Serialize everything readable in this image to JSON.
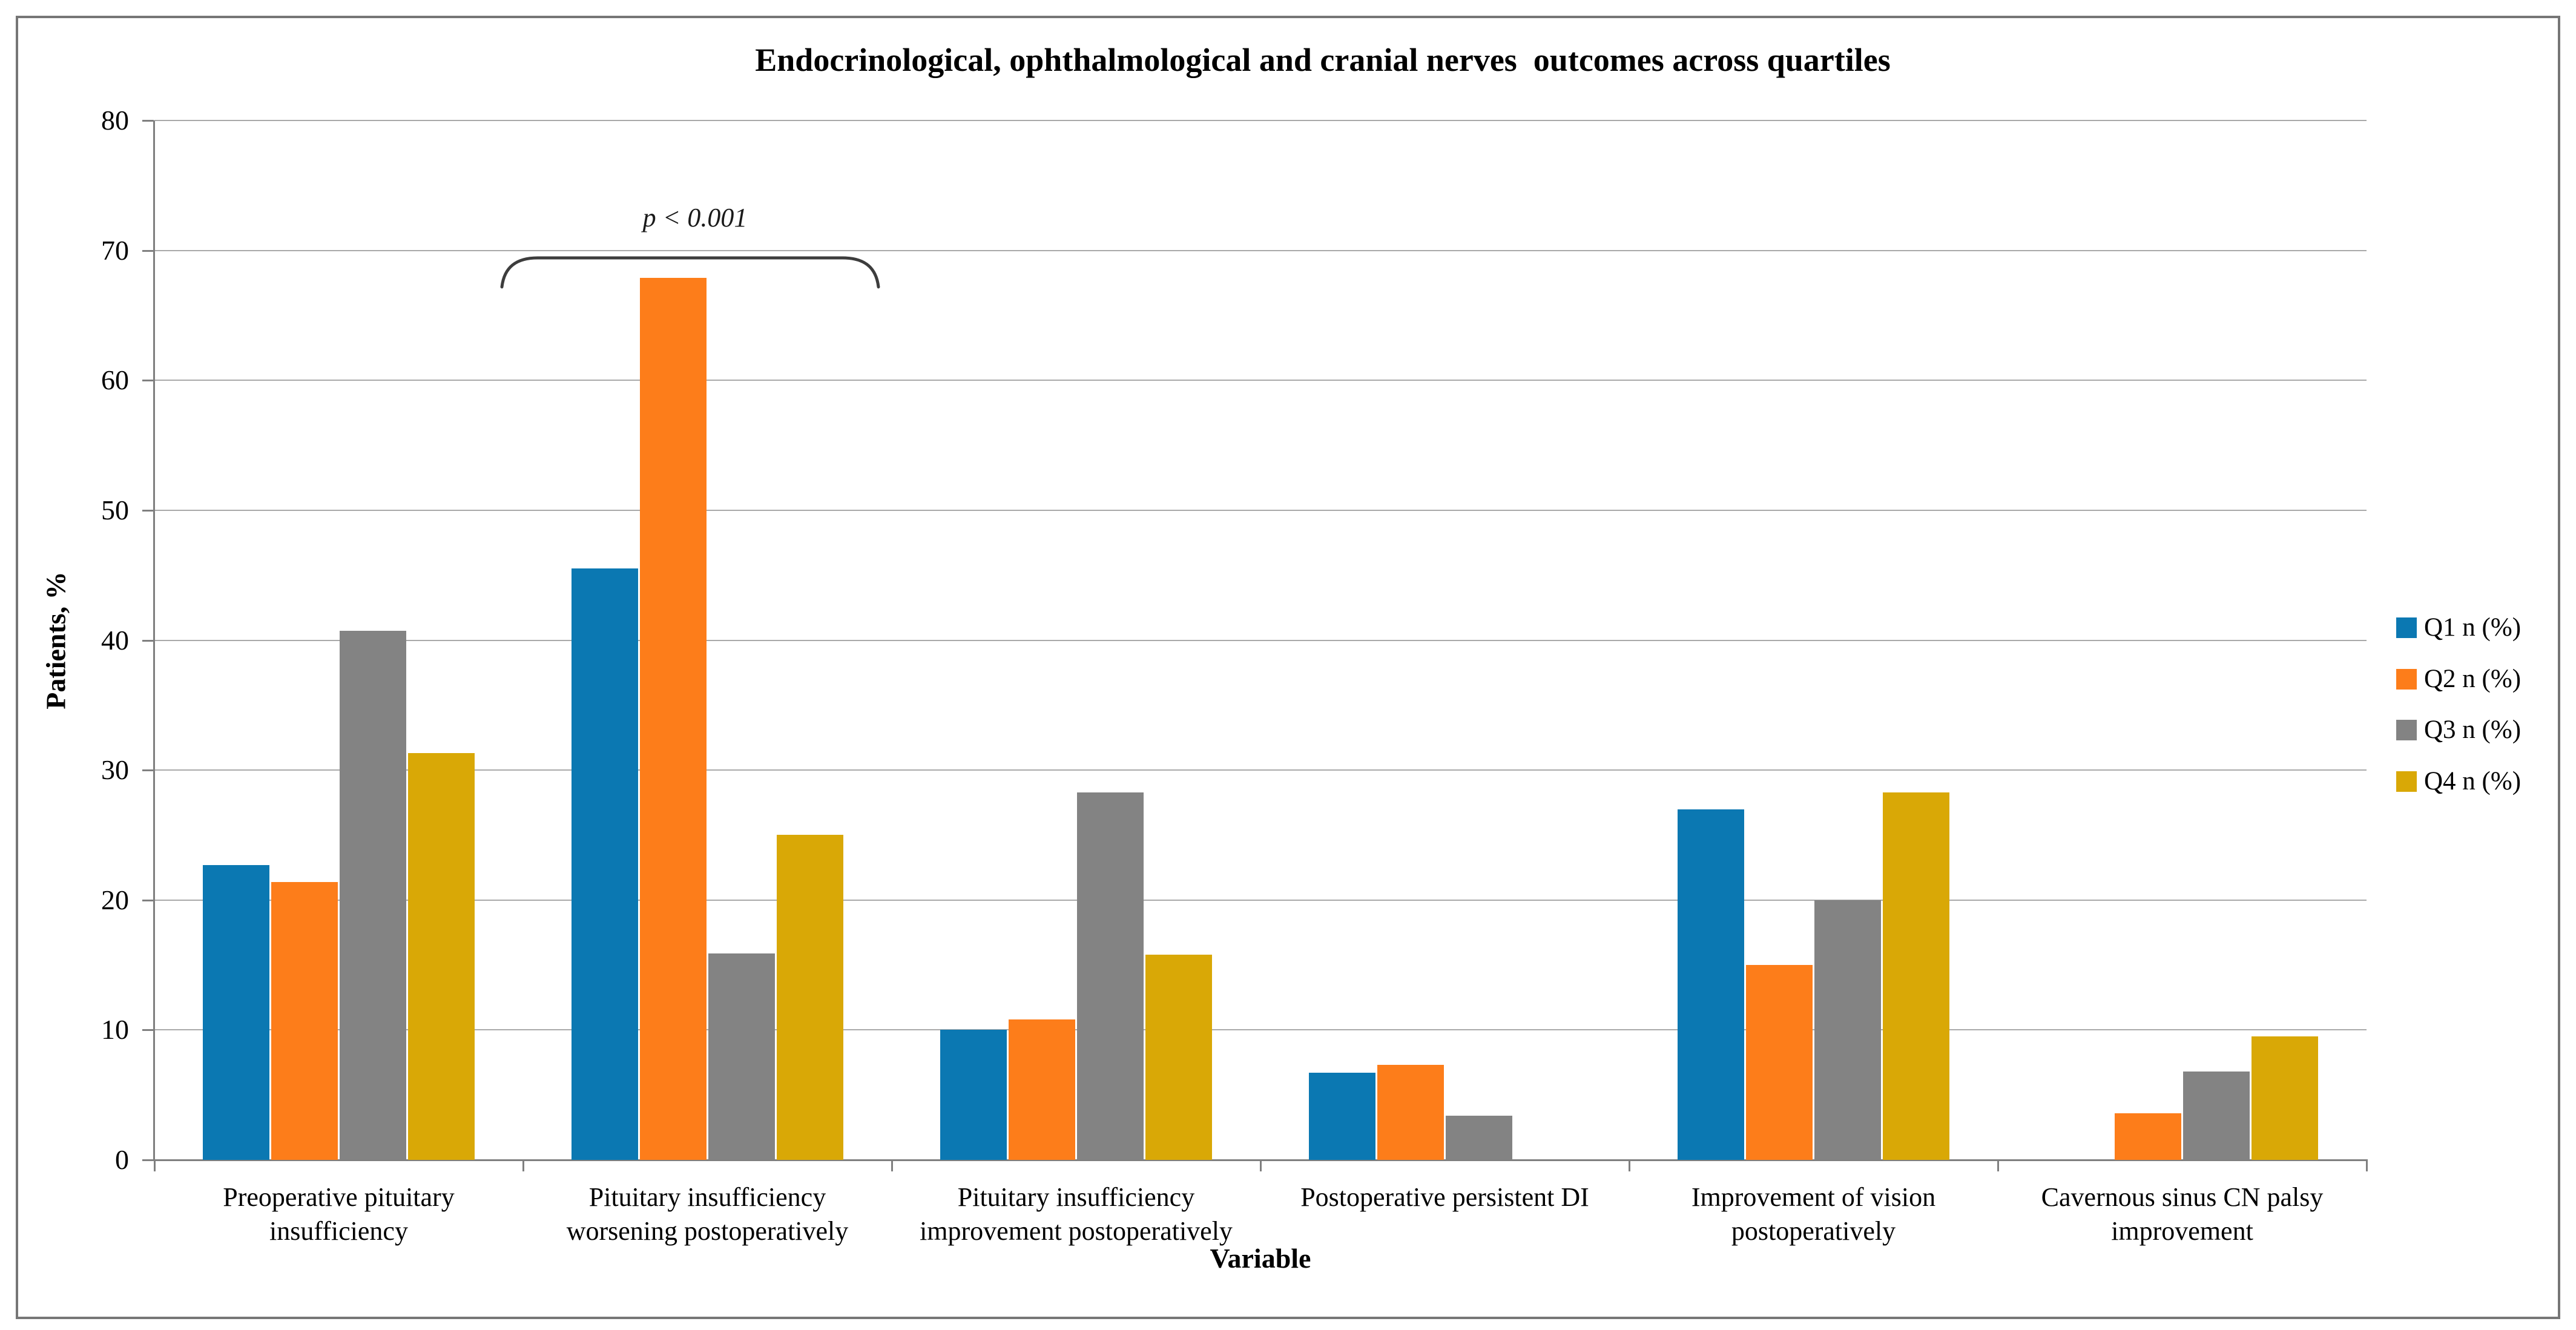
{
  "chart_data": {
    "type": "bar",
    "title": "Endocrinological, ophthalmological and cranial nerves  outcomes across quartiles",
    "xlabel": "Variable",
    "ylabel": "Patients, %",
    "ylim": [
      0,
      80
    ],
    "yticks": [
      0,
      10,
      20,
      30,
      40,
      50,
      60,
      70,
      80
    ],
    "grid": true,
    "legend_position": "right",
    "categories": [
      "Preoperative pituitary insufficiency",
      "Pituitary insufficiency worsening postoperatively",
      "Pituitary insufficiency improvement postoperatively",
      "Postoperative persistent DI",
      "Improvement of vision postoperatively",
      "Cavernous sinus CN palsy improvement"
    ],
    "series": [
      {
        "name": "Q1 n (%)",
        "color": "#0B78B2",
        "values": [
          22.7,
          45.5,
          10.0,
          6.7,
          27.0,
          0
        ]
      },
      {
        "name": "Q2 n (%)",
        "color": "#FD7D1A",
        "values": [
          21.4,
          67.9,
          10.8,
          7.3,
          15.0,
          3.6
        ]
      },
      {
        "name": "Q3 n (%)",
        "color": "#838383",
        "values": [
          40.7,
          15.9,
          28.3,
          3.4,
          20.0,
          6.8
        ]
      },
      {
        "name": "Q4 n (%)",
        "color": "#D9A806",
        "values": [
          31.3,
          25.0,
          15.8,
          0,
          28.3,
          9.5
        ]
      }
    ],
    "annotation": {
      "text": "p < 0.001",
      "target_category": "Pituitary insufficiency worsening postoperatively"
    }
  }
}
